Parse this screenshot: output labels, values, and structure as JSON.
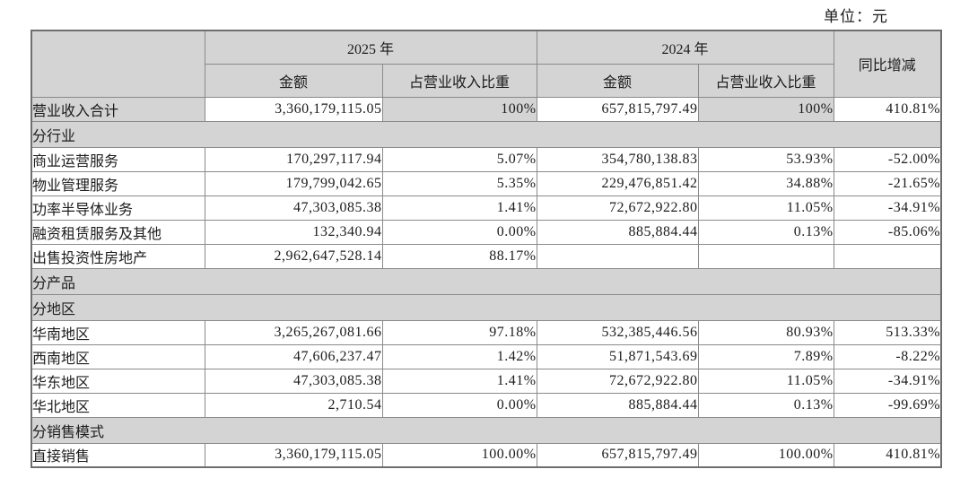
{
  "meta": {
    "unit_note": "单位：元"
  },
  "table": {
    "col_headers": {
      "y2025": "2025 年",
      "y2024": "2024 年",
      "yoy": "同比增减",
      "amount_2025": "金额",
      "share_2025": "占营业收入比重",
      "amount_2024": "金额",
      "share_2024": "占营业收入比重"
    },
    "rows": [
      {
        "type": "data",
        "emphasis": true,
        "label": "营业收入合计",
        "amount_2025": "3,360,179,115.05",
        "share_2025": "100%",
        "amount_2024": "657,815,797.49",
        "share_2024": "100%",
        "yoy": "410.81%"
      },
      {
        "type": "section",
        "label": "分行业"
      },
      {
        "type": "data",
        "label": "商业运营服务",
        "amount_2025": "170,297,117.94",
        "share_2025": "5.07%",
        "amount_2024": "354,780,138.83",
        "share_2024": "53.93%",
        "yoy": "-52.00%"
      },
      {
        "type": "data",
        "label": "物业管理服务",
        "amount_2025": "179,799,042.65",
        "share_2025": "5.35%",
        "amount_2024": "229,476,851.42",
        "share_2024": "34.88%",
        "yoy": "-21.65%"
      },
      {
        "type": "data",
        "label": "功率半导体业务",
        "amount_2025": "47,303,085.38",
        "share_2025": "1.41%",
        "amount_2024": "72,672,922.80",
        "share_2024": "11.05%",
        "yoy": "-34.91%"
      },
      {
        "type": "data",
        "label": "融资租赁服务及其他",
        "amount_2025": "132,340.94",
        "share_2025": "0.00%",
        "amount_2024": "885,884.44",
        "share_2024": "0.13%",
        "yoy": "-85.06%"
      },
      {
        "type": "data",
        "label": "出售投资性房地产",
        "amount_2025": "2,962,647,528.14",
        "share_2025": "88.17%",
        "amount_2024": "",
        "share_2024": "",
        "yoy": ""
      },
      {
        "type": "section",
        "label": "分产品"
      },
      {
        "type": "section",
        "label": "分地区"
      },
      {
        "type": "data",
        "label": "华南地区",
        "amount_2025": "3,265,267,081.66",
        "share_2025": "97.18%",
        "amount_2024": "532,385,446.56",
        "share_2024": "80.93%",
        "yoy": "513.33%"
      },
      {
        "type": "data",
        "label": "西南地区",
        "amount_2025": "47,606,237.47",
        "share_2025": "1.42%",
        "amount_2024": "51,871,543.69",
        "share_2024": "7.89%",
        "yoy": "-8.22%"
      },
      {
        "type": "data",
        "label": "华东地区",
        "amount_2025": "47,303,085.38",
        "share_2025": "1.41%",
        "amount_2024": "72,672,922.80",
        "share_2024": "11.05%",
        "yoy": "-34.91%"
      },
      {
        "type": "data",
        "label": "华北地区",
        "amount_2025": "2,710.54",
        "share_2025": "0.00%",
        "amount_2024": "885,884.44",
        "share_2024": "0.13%",
        "yoy": "-99.69%"
      },
      {
        "type": "section",
        "label": "分销售模式"
      },
      {
        "type": "data",
        "label": "直接销售",
        "amount_2025": "3,360,179,115.05",
        "share_2025": "100.00%",
        "amount_2024": "657,815,797.49",
        "share_2024": "100.00%",
        "yoy": "410.81%"
      }
    ]
  }
}
